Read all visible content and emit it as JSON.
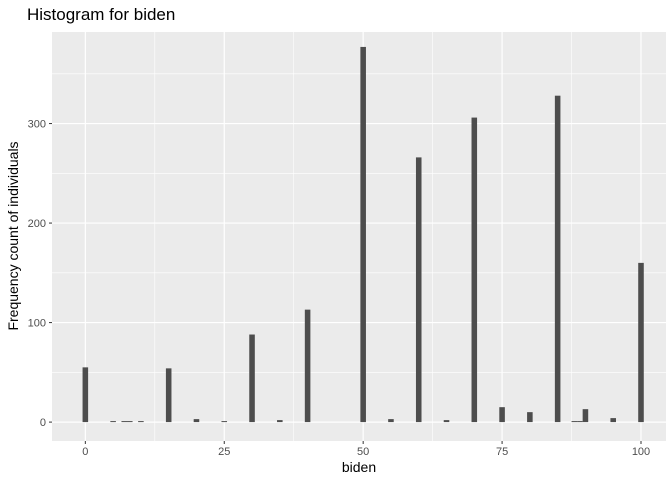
{
  "chart_data": {
    "type": "bar",
    "title": "Histogram for biden",
    "xlabel": "biden",
    "ylabel": "Frequency count of individuals",
    "xlim": [
      -6,
      104.5
    ],
    "ylim": [
      -19,
      392
    ],
    "x_ticks": [
      0,
      25,
      50,
      75,
      100
    ],
    "x_tick_labels": [
      "0",
      "25",
      "50",
      "75",
      "100"
    ],
    "y_ticks": [
      0,
      100,
      200,
      300
    ],
    "y_tick_labels": [
      "0",
      "100",
      "200",
      "300"
    ],
    "bin_width": 1,
    "grid": true,
    "bar_color": "#4d4d4d",
    "panel_color": "#ebebeb",
    "grid_color": "#ffffff",
    "x": [
      0,
      5,
      7,
      8,
      10,
      15,
      20,
      25,
      30,
      35,
      40,
      50,
      55,
      60,
      65,
      70,
      75,
      80,
      85,
      88,
      89,
      90,
      95,
      100
    ],
    "values": [
      55,
      1,
      1,
      1,
      1,
      54,
      3,
      1,
      88,
      2,
      113,
      377,
      3,
      266,
      2,
      306,
      15,
      10,
      328,
      1,
      1,
      13,
      4,
      160
    ]
  }
}
